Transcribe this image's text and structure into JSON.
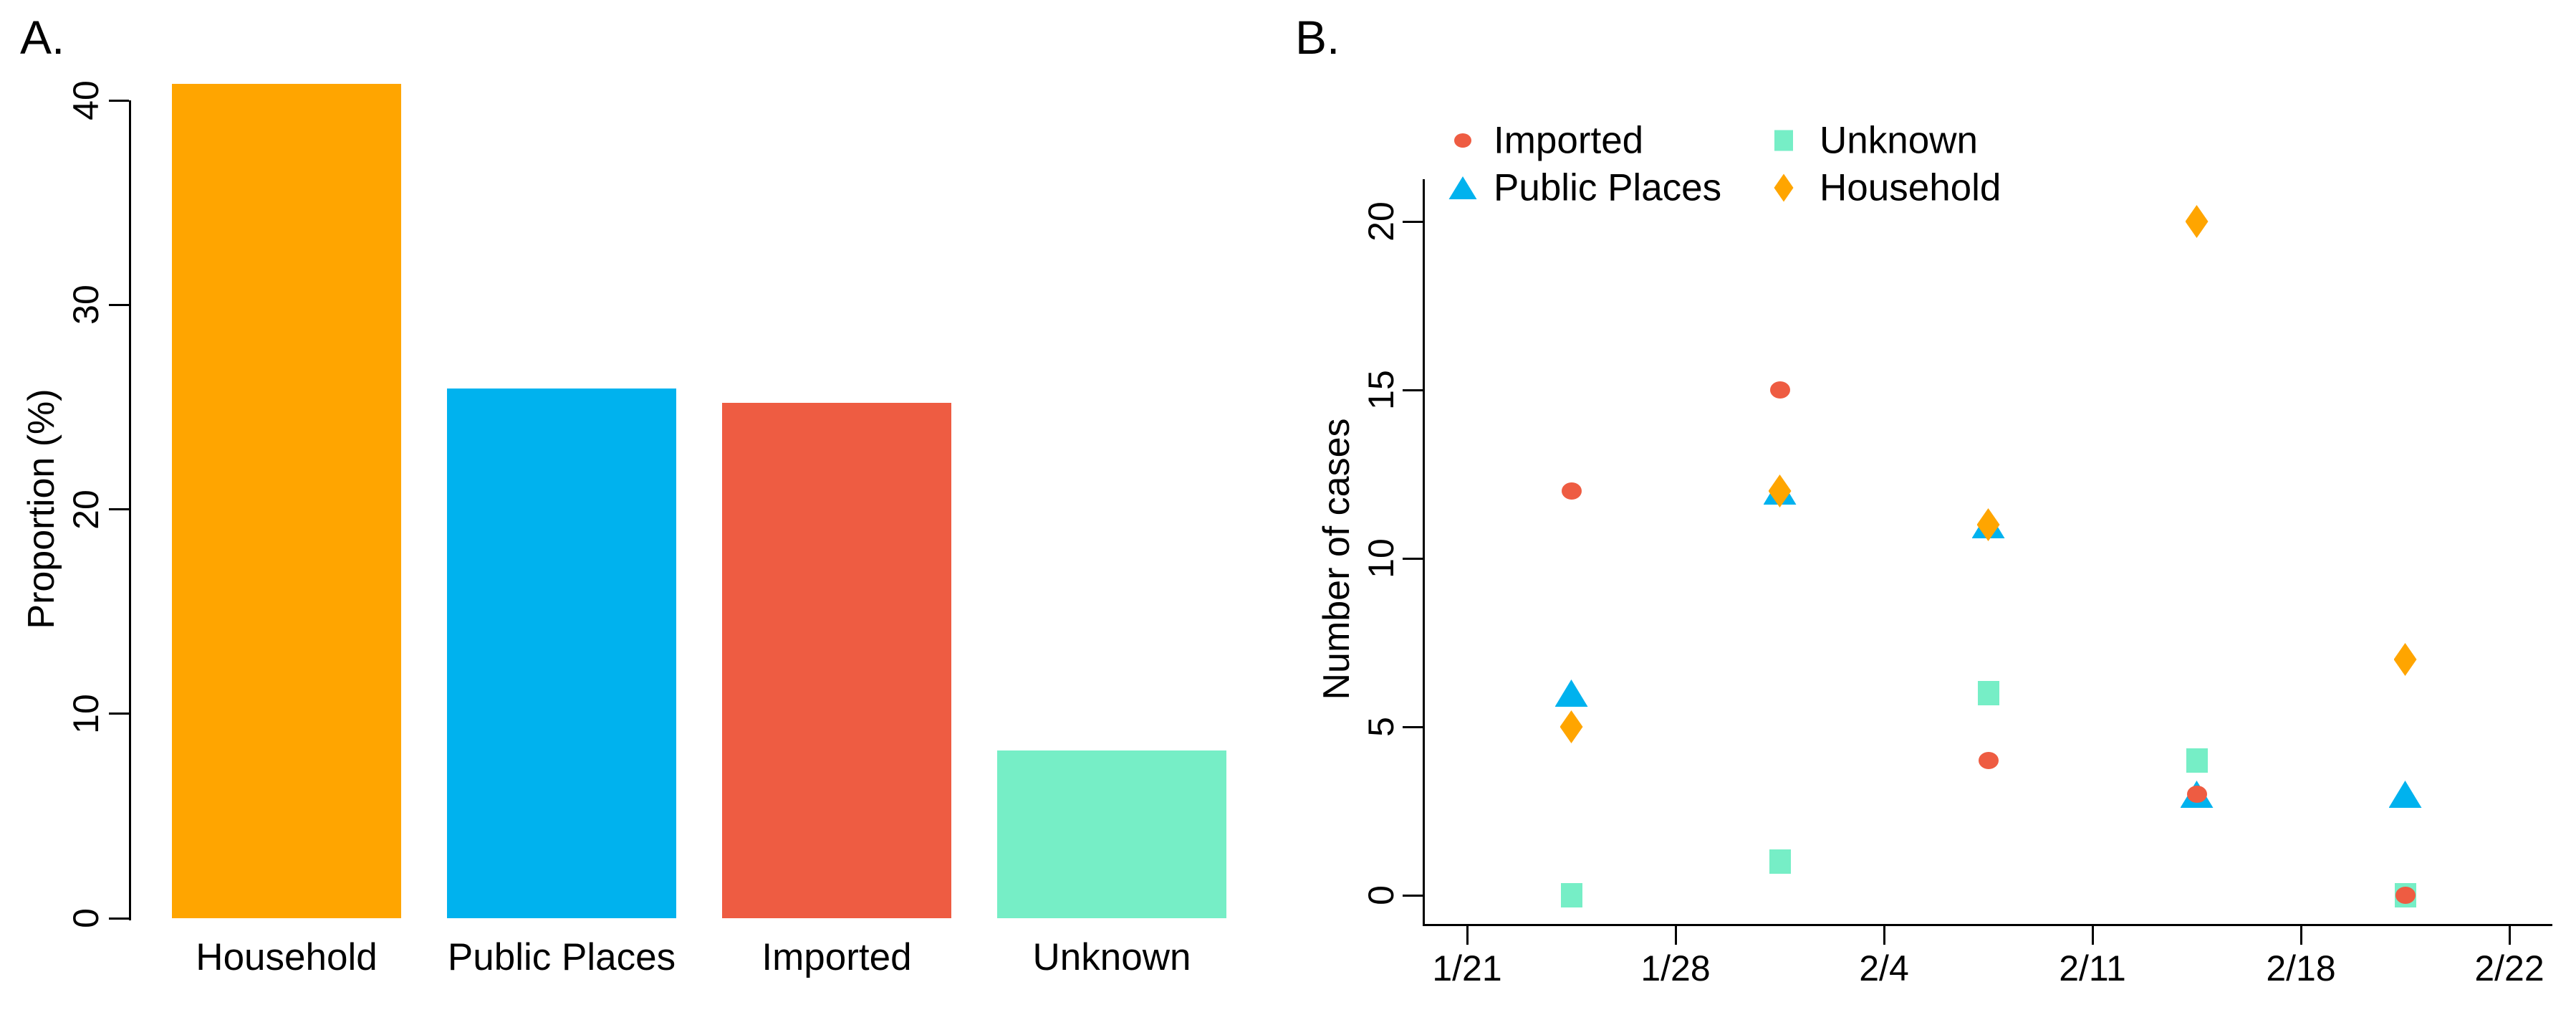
{
  "panels": {
    "a": {
      "label": "A."
    },
    "b": {
      "label": "B."
    }
  },
  "chart_data": [
    {
      "type": "bar",
      "panel_label": "A.",
      "title": "",
      "xlabel": "",
      "ylabel": "Proportion (%)",
      "categories": [
        "Household",
        "Public Places",
        "Imported",
        "Unknown"
      ],
      "values": [
        40.8,
        25.9,
        25.2,
        8.2
      ],
      "colors": [
        "#FFA500",
        "#00B2EE",
        "#EE5C42",
        "#76EEC6"
      ],
      "yticks": [
        0,
        10,
        20,
        30,
        40
      ],
      "ylim": [
        0,
        41.6
      ],
      "grid": false
    },
    {
      "type": "scatter",
      "panel_label": "B.",
      "title": "",
      "xlabel": "",
      "ylabel": "Number of cases",
      "yticks": [
        0,
        5,
        10,
        15,
        20
      ],
      "ylim": [
        -1,
        22
      ],
      "xtick_labels": [
        "1/21",
        "1/28",
        "2/4",
        "2/11",
        "2/18",
        "2/22"
      ],
      "x_units": [
        0.5,
        1.5,
        2.5,
        3.5,
        4.5
      ],
      "grid": false,
      "legend_position": "top-left",
      "legend_items": [
        {
          "label": "Imported",
          "marker": "circle",
          "col": 0,
          "row": 0
        },
        {
          "label": "Public Places",
          "marker": "triangle",
          "col": 0,
          "row": 1
        },
        {
          "label": "Unknown",
          "marker": "square",
          "col": 1,
          "row": 0
        },
        {
          "label": "Household",
          "marker": "diamond",
          "col": 1,
          "row": 1
        }
      ],
      "series": [
        {
          "name": "Public Places",
          "marker": "triangle",
          "color": "#00B2EE",
          "y": [
            6,
            12,
            11,
            3,
            3
          ]
        },
        {
          "name": "Unknown",
          "marker": "square",
          "color": "#76EEC6",
          "y": [
            0,
            1,
            6,
            4,
            0
          ]
        },
        {
          "name": "Imported",
          "marker": "circle",
          "color": "#EE5C42",
          "y": [
            12,
            15,
            4,
            3,
            0
          ]
        },
        {
          "name": "Household",
          "marker": "diamond",
          "color": "#FFA500",
          "y": [
            5,
            12,
            11,
            20,
            7
          ]
        }
      ]
    }
  ]
}
